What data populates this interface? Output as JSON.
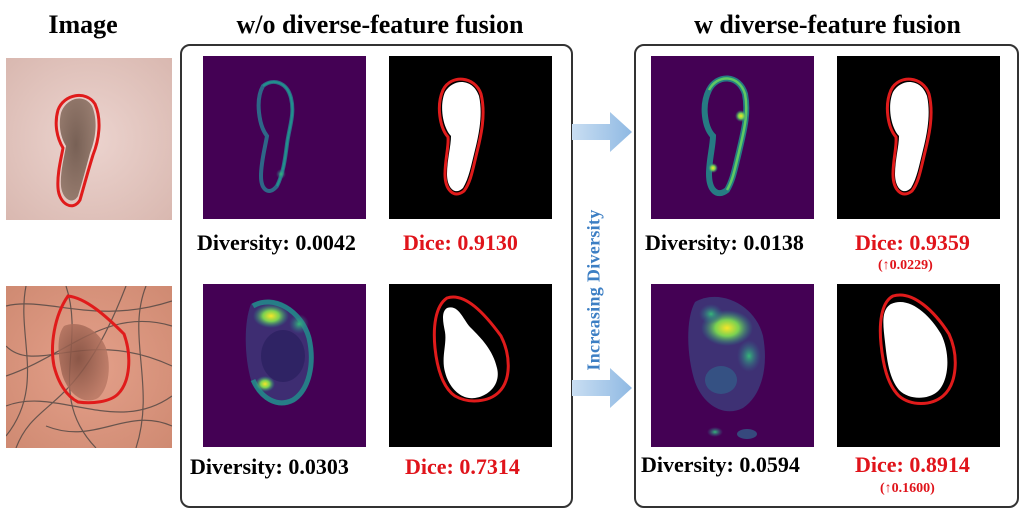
{
  "headers": {
    "image": "Image",
    "without": "w/o diverse-feature fusion",
    "with": "w diverse-feature fusion"
  },
  "center_label": "Increasing Diversity",
  "rows": [
    {
      "without": {
        "diversity": "Diversity: 0.0042",
        "dice": "Dice: 0.9130"
      },
      "with": {
        "diversity": "Diversity: 0.0138",
        "dice": "Dice: 0.9359",
        "delta": "(↑0.0229)"
      }
    },
    {
      "without": {
        "diversity": "Diversity: 0.0303",
        "dice": "Dice: 0.7314"
      },
      "with": {
        "diversity": "Diversity: 0.0594",
        "dice": "Dice: 0.8914",
        "delta": "(↑0.1600)"
      }
    }
  ],
  "colors": {
    "dice_text": "#e0141b",
    "contour": "#e01b1b",
    "heatmap_bg": "#440154",
    "arrow": "#9fc3e6",
    "center_label": "#3d7fc4"
  }
}
